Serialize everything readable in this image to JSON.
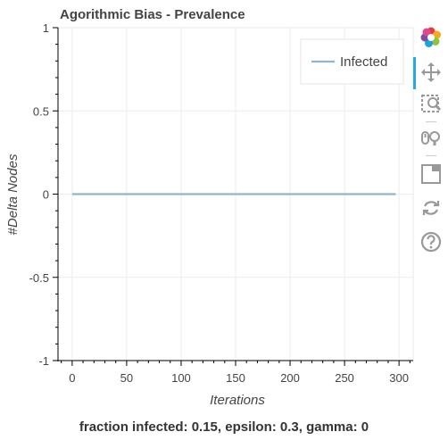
{
  "chart_data": {
    "type": "line",
    "title": "Agorithmic Bias - Prevalence",
    "xlabel": "Iterations",
    "ylabel": "#Delta Nodes",
    "xlim": [
      -13,
      313
    ],
    "ylim": [
      -1,
      1
    ],
    "x_ticks": [
      0,
      50,
      100,
      150,
      200,
      250,
      300
    ],
    "y_ticks": [
      1,
      0.5,
      0,
      -0.5,
      -1
    ],
    "y_tick_labels": [
      "1",
      "0.5",
      "0",
      "-0.5",
      "-1"
    ],
    "grid": true,
    "legend_position": "top-right",
    "series": [
      {
        "name": "Infected",
        "color": "#8fb5d0",
        "x": [
          0,
          297
        ],
        "y": [
          0,
          0
        ]
      }
    ]
  },
  "caption": "fraction infected: 0.15, epsilon: 0.3, gamma: 0",
  "toolbar": {
    "tools": [
      "bokeh-logo-icon",
      "pan-icon",
      "box-zoom-icon",
      "wheel-zoom-icon",
      "save-icon",
      "reset-icon",
      "help-icon"
    ]
  }
}
